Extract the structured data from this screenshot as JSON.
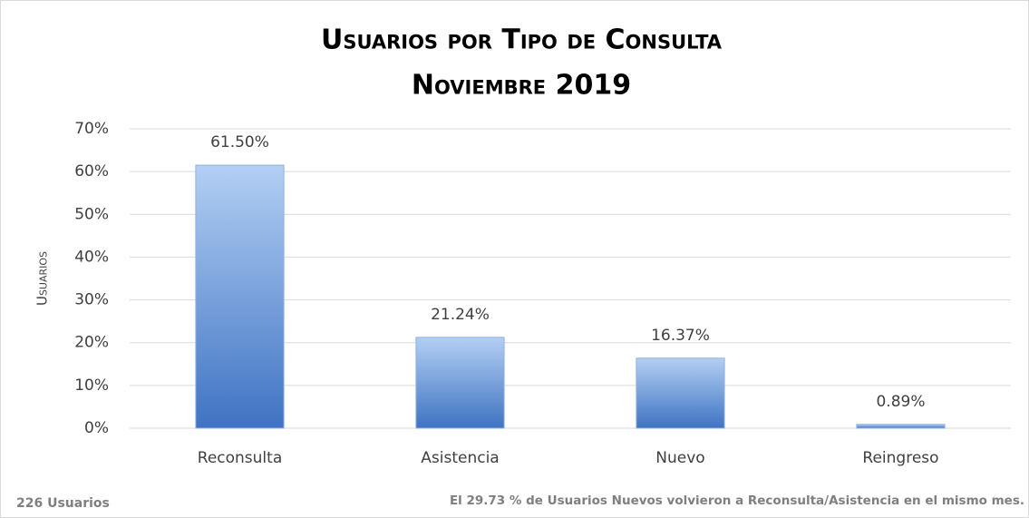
{
  "chart_data": {
    "type": "bar",
    "title": "Usuarios por Tipo de Consulta",
    "subtitle": "Noviembre 2019",
    "y_label": "Usuarios",
    "categories": [
      "Reconsulta",
      "Asistencia",
      "Nuevo",
      "Reingreso"
    ],
    "values": [
      61.5,
      21.24,
      16.37,
      0.89
    ],
    "value_labels": [
      "61.50%",
      "21.24%",
      "16.37%",
      "0.89%"
    ],
    "color": "#3f73c2",
    "ylim": [
      0,
      70
    ],
    "yticks": [
      {
        "value": 0,
        "label": "0%"
      },
      {
        "value": 10,
        "label": "10%"
      },
      {
        "value": 20,
        "label": "20%"
      },
      {
        "value": 30,
        "label": "30%"
      },
      {
        "value": 40,
        "label": "40%"
      },
      {
        "value": 50,
        "label": "50%"
      },
      {
        "value": 60,
        "label": "60%"
      },
      {
        "value": 70,
        "label": "70%"
      }
    ],
    "grid": true,
    "footer_left": "226 Usuarios",
    "annotation": "El 29.73 % de Usuarios Nuevos volvieron a Reconsulta/Asistencia en el mismo mes."
  }
}
